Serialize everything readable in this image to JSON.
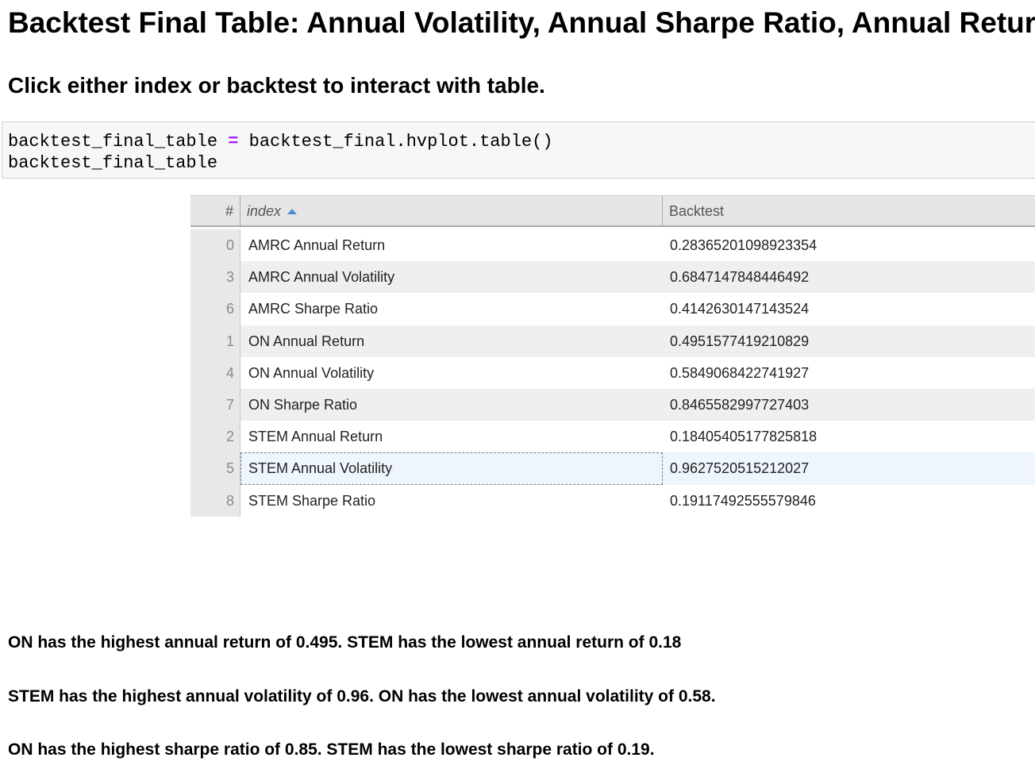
{
  "heading": "Backtest Final Table: Annual Volatility, Annual Sharpe Ratio, Annual Return",
  "subheading": "Click either index or backtest to interact with table.",
  "code": {
    "line1_left": "backtest_final_table",
    "line1_op": "=",
    "line1_right": "backtest_final.hvplot.table()",
    "line2": "backtest_final_table"
  },
  "table": {
    "columns": {
      "num": "#",
      "index": "index",
      "backtest": "Backtest"
    },
    "sort": {
      "column": "index",
      "direction": "ascending"
    },
    "rows": [
      {
        "num": "0",
        "index": "AMRC Annual Return",
        "backtest": "0.28365201098923354"
      },
      {
        "num": "3",
        "index": "AMRC Annual Volatility",
        "backtest": "0.6847147848446492"
      },
      {
        "num": "6",
        "index": "AMRC Sharpe Ratio",
        "backtest": "0.4142630147143524"
      },
      {
        "num": "1",
        "index": "ON Annual Return",
        "backtest": "0.4951577419210829"
      },
      {
        "num": "4",
        "index": "ON Annual Volatility",
        "backtest": "0.5849068422741927"
      },
      {
        "num": "7",
        "index": "ON Sharpe Ratio",
        "backtest": "0.8465582997727403"
      },
      {
        "num": "2",
        "index": "STEM Annual Return",
        "backtest": "0.18405405177825818"
      },
      {
        "num": "5",
        "index": "STEM Annual Volatility",
        "backtest": "0.9627520515212027"
      },
      {
        "num": "8",
        "index": "STEM Sharpe Ratio",
        "backtest": "0.19117492555579846"
      }
    ],
    "selected_row": "5"
  },
  "summary": [
    "ON has the highest annual return of 0.495. STEM has the lowest annual return of 0.18",
    "STEM has the highest annual volatility of 0.96. ON has the lowest annual volatility of 0.58.",
    "ON has the highest sharpe ratio of 0.85. STEM has the lowest sharpe ratio of 0.19."
  ],
  "colors": {
    "operator": "#aa22ff",
    "sort_arrow": "#4a8fd6",
    "selected_row": "#eef5fd"
  }
}
